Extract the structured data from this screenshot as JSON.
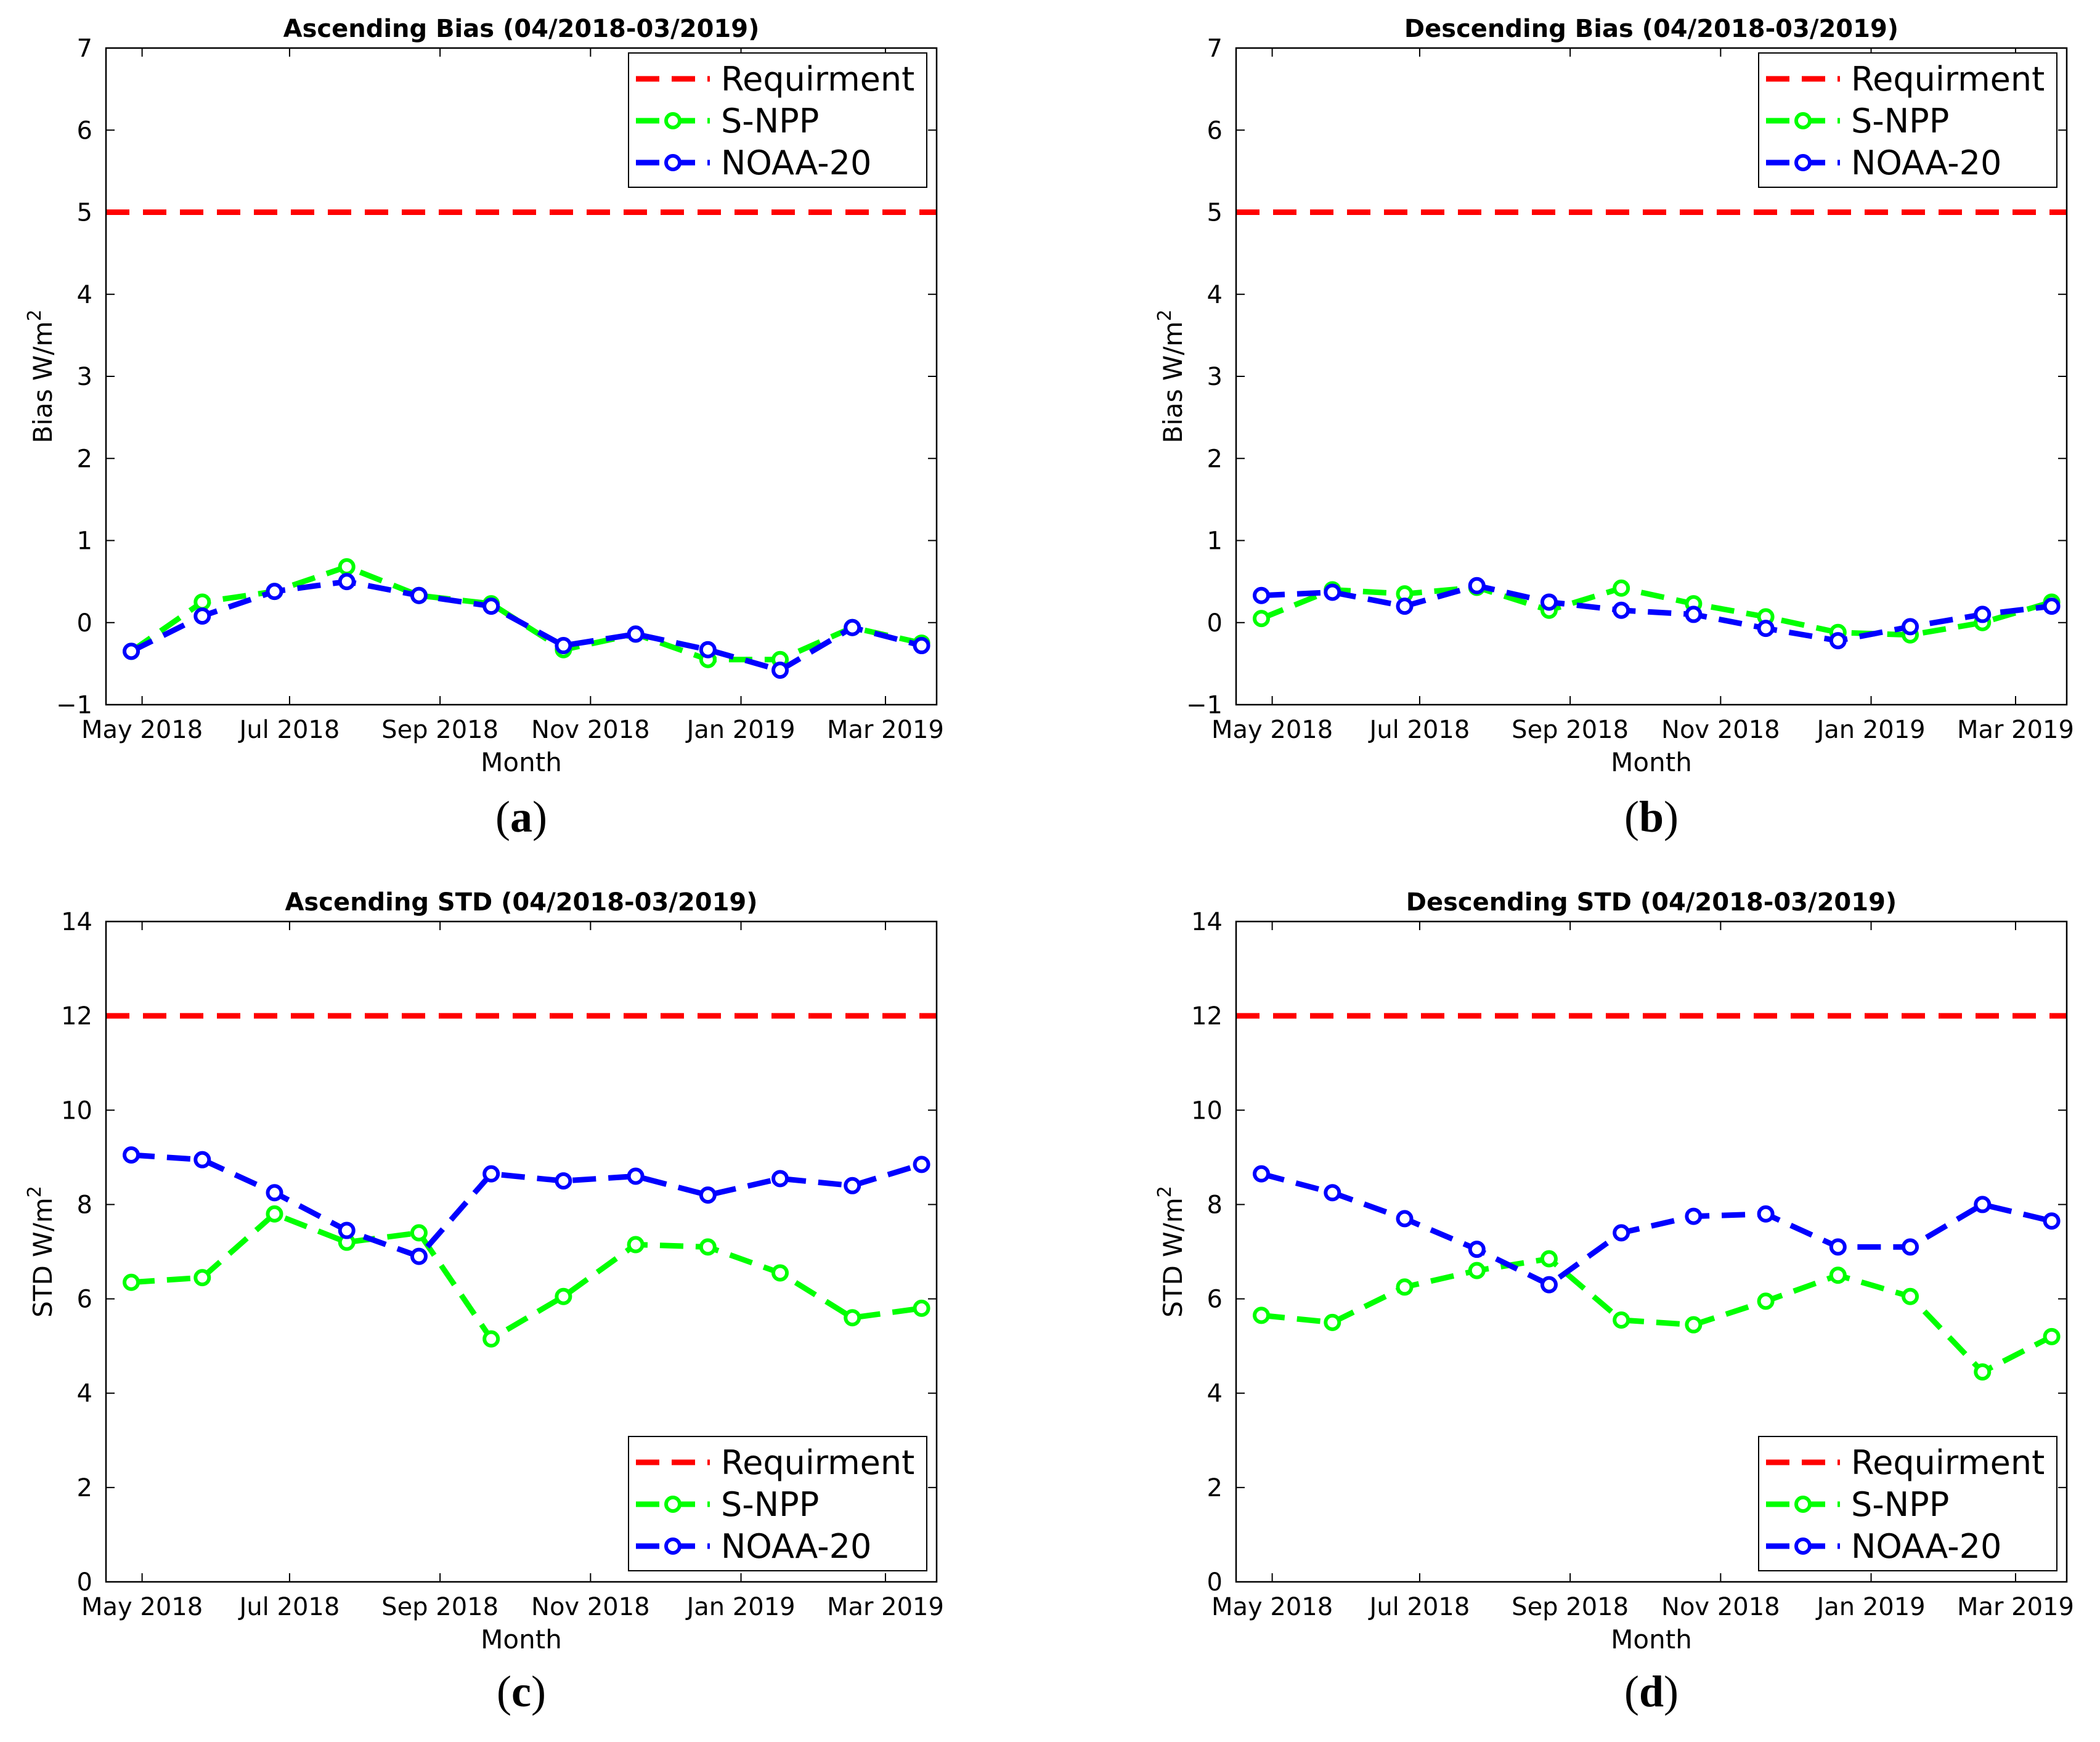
{
  "chart_data": [
    {
      "id": "a",
      "type": "line",
      "caption_letter": "a",
      "title": "Ascending Bias (04/2018-03/2019)",
      "xlabel": "Month",
      "ylabel_main": "Bias W/m",
      "ylabel_sup": "2",
      "ylim": [
        -1,
        7
      ],
      "yticks": [
        -1,
        0,
        1,
        2,
        3,
        4,
        5,
        6,
        7
      ],
      "x_tick_labels": [
        "May 2018",
        "Jul 2018",
        "Sep 2018",
        "Nov 2018",
        "Jan 2019",
        "Mar 2019"
      ],
      "legend_position": "top-right",
      "requirement": {
        "name": "Requirment",
        "value": 5,
        "color": "#ff0000"
      },
      "series": [
        {
          "name": "S-NPP",
          "color": "#00ff00",
          "values": [
            -0.35,
            0.25,
            0.38,
            0.68,
            0.33,
            0.23,
            -0.33,
            -0.14,
            -0.45,
            -0.45,
            -0.06,
            -0.25
          ]
        },
        {
          "name": "NOAA-20",
          "color": "#0000ff",
          "values": [
            -0.35,
            0.08,
            0.38,
            0.5,
            0.33,
            0.2,
            -0.28,
            -0.14,
            -0.33,
            -0.58,
            -0.06,
            -0.28
          ]
        }
      ]
    },
    {
      "id": "b",
      "type": "line",
      "caption_letter": "b",
      "title": "Descending Bias (04/2018-03/2019)",
      "xlabel": "Month",
      "ylabel_main": "Bias W/m",
      "ylabel_sup": "2",
      "ylim": [
        -1,
        7
      ],
      "yticks": [
        -1,
        0,
        1,
        2,
        3,
        4,
        5,
        6,
        7
      ],
      "x_tick_labels": [
        "May 2018",
        "Jul 2018",
        "Sep 2018",
        "Nov 2018",
        "Jan 2019",
        "Mar 2019"
      ],
      "legend_position": "top-right",
      "requirement": {
        "name": "Requirment",
        "value": 5,
        "color": "#ff0000"
      },
      "series": [
        {
          "name": "S-NPP",
          "color": "#00ff00",
          "values": [
            0.05,
            0.4,
            0.35,
            0.43,
            0.15,
            0.42,
            0.23,
            0.07,
            -0.12,
            -0.15,
            0.0,
            0.25
          ]
        },
        {
          "name": "NOAA-20",
          "color": "#0000ff",
          "values": [
            0.33,
            0.37,
            0.2,
            0.45,
            0.25,
            0.15,
            0.1,
            -0.07,
            -0.22,
            -0.05,
            0.1,
            0.2
          ]
        }
      ]
    },
    {
      "id": "c",
      "type": "line",
      "caption_letter": "c",
      "title": "Ascending STD (04/2018-03/2019)",
      "xlabel": "Month",
      "ylabel_main": "STD W/m",
      "ylabel_sup": "2",
      "ylim": [
        0,
        14
      ],
      "yticks": [
        0,
        2,
        4,
        6,
        8,
        10,
        12,
        14
      ],
      "x_tick_labels": [
        "May 2018",
        "Jul 2018",
        "Sep 2018",
        "Nov 2018",
        "Jan 2019",
        "Mar 2019"
      ],
      "legend_position": "bottom-right",
      "requirement": {
        "name": "Requirment",
        "value": 12,
        "color": "#ff0000"
      },
      "series": [
        {
          "name": "S-NPP",
          "color": "#00ff00",
          "values": [
            6.35,
            6.45,
            7.8,
            7.2,
            7.4,
            5.15,
            6.05,
            7.15,
            7.1,
            6.55,
            5.6,
            5.8
          ]
        },
        {
          "name": "NOAA-20",
          "color": "#0000ff",
          "values": [
            9.05,
            8.95,
            8.25,
            7.45,
            6.9,
            8.65,
            8.5,
            8.6,
            8.2,
            8.55,
            8.4,
            8.85
          ]
        }
      ]
    },
    {
      "id": "d",
      "type": "line",
      "caption_letter": "d",
      "title": "Descending STD (04/2018-03/2019)",
      "xlabel": "Month",
      "ylabel_main": "STD W/m",
      "ylabel_sup": "2",
      "ylim": [
        0,
        14
      ],
      "yticks": [
        0,
        2,
        4,
        6,
        8,
        10,
        12,
        14
      ],
      "x_tick_labels": [
        "May 2018",
        "Jul 2018",
        "Sep 2018",
        "Nov 2018",
        "Jan 2019",
        "Mar 2019"
      ],
      "legend_position": "bottom-right",
      "requirement": {
        "name": "Requirment",
        "value": 12,
        "color": "#ff0000"
      },
      "series": [
        {
          "name": "S-NPP",
          "color": "#00ff00",
          "values": [
            5.65,
            5.5,
            6.25,
            6.6,
            6.85,
            5.55,
            5.45,
            5.95,
            6.5,
            6.05,
            4.45,
            5.2
          ]
        },
        {
          "name": "NOAA-20",
          "color": "#0000ff",
          "values": [
            8.65,
            8.25,
            7.7,
            7.05,
            6.3,
            7.4,
            7.75,
            7.8,
            7.1,
            7.1,
            8.0,
            7.65
          ]
        }
      ]
    }
  ]
}
